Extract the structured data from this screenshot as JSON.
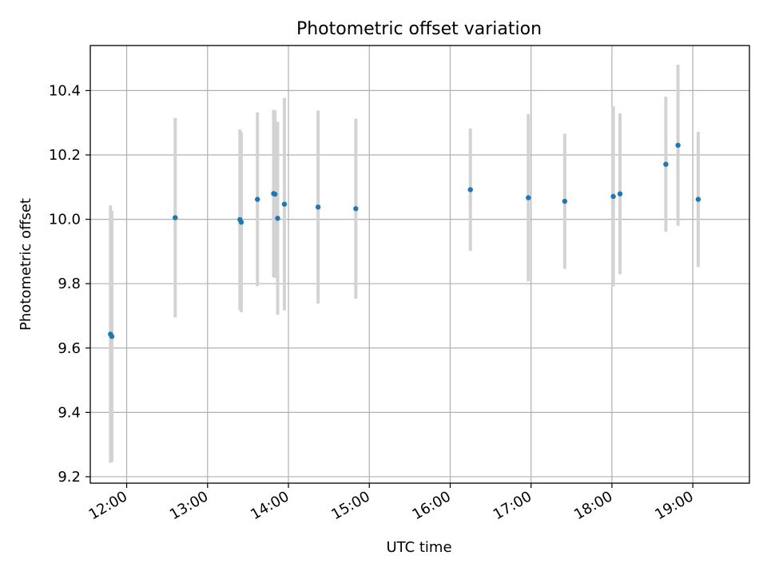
{
  "chart_data": {
    "type": "scatter",
    "title": "Photometric offset variation",
    "xlabel": "UTC time",
    "ylabel": "Photometric offset",
    "xlim": [
      "11:33",
      "19:42"
    ],
    "ylim": [
      9.18,
      10.54
    ],
    "xticks": [
      "12:00",
      "13:00",
      "14:00",
      "15:00",
      "16:00",
      "17:00",
      "18:00",
      "19:00"
    ],
    "yticks": [
      9.2,
      9.4,
      9.6,
      9.8,
      10.0,
      10.2,
      10.4
    ],
    "grid": true,
    "colors": {
      "point": "#1f77b4",
      "errorbar": "#d3d3d3",
      "grid": "#b0b0b0"
    },
    "points": [
      {
        "x": "11:48",
        "y": 9.643,
        "err": 0.4
      },
      {
        "x": "11:49",
        "y": 9.636,
        "err": 0.39
      },
      {
        "x": "12:36",
        "y": 10.005,
        "err": 0.31
      },
      {
        "x": "13:24",
        "y": 9.999,
        "err": 0.28
      },
      {
        "x": "13:25",
        "y": 9.991,
        "err": 0.28
      },
      {
        "x": "13:37",
        "y": 10.062,
        "err": 0.27
      },
      {
        "x": "13:49",
        "y": 10.08,
        "err": 0.26
      },
      {
        "x": "13:50",
        "y": 10.078,
        "err": 0.26
      },
      {
        "x": "13:52",
        "y": 10.003,
        "err": 0.3
      },
      {
        "x": "13:57",
        "y": 10.047,
        "err": 0.33
      },
      {
        "x": "14:22",
        "y": 10.038,
        "err": 0.3
      },
      {
        "x": "14:50",
        "y": 10.033,
        "err": 0.28
      },
      {
        "x": "16:15",
        "y": 10.092,
        "err": 0.19
      },
      {
        "x": "16:58",
        "y": 10.067,
        "err": 0.26
      },
      {
        "x": "17:25",
        "y": 10.056,
        "err": 0.21
      },
      {
        "x": "18:01",
        "y": 10.071,
        "err": 0.28
      },
      {
        "x": "18:06",
        "y": 10.079,
        "err": 0.25
      },
      {
        "x": "18:40",
        "y": 10.171,
        "err": 0.21
      },
      {
        "x": "18:49",
        "y": 10.23,
        "err": 0.25
      },
      {
        "x": "19:04",
        "y": 10.062,
        "err": 0.21
      }
    ]
  }
}
